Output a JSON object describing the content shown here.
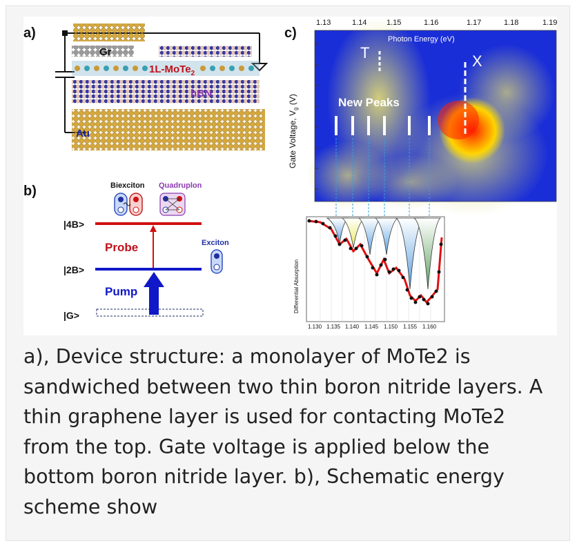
{
  "panel_a": {
    "label": "a)",
    "layer_gr": "Gr",
    "layer_mote2": "1L-MoTe",
    "layer_mote2_sub": "2",
    "layer_hbn": "hBN",
    "contact_au": "Au"
  },
  "panel_b": {
    "label": "b)",
    "biexciton": "Biexciton",
    "quadruplon": "Quadruplon",
    "exciton": "Exciton",
    "level_4b": "|4B>",
    "level_2b": "|2B>",
    "level_g": "|G>",
    "probe": "Probe",
    "pump": "Pump"
  },
  "panel_c": {
    "label": "c)",
    "top_axis_label": "Photon Energy (eV)",
    "top_ticks": [
      "1.13",
      "1.14",
      "1.15",
      "1.16",
      "1.17",
      "1.18",
      "1.19"
    ],
    "y_axis_label": "Gate Voltage, V",
    "y_axis_sub": "g",
    "y_axis_unit": " (V)",
    "label_T": "T",
    "label_X": "X",
    "label_new_peaks": "New Peaks",
    "diff_ylabel": "Differential Absorption",
    "diff_ticks": [
      "1.130",
      "1.135",
      "1.140",
      "1.145",
      "1.150",
      "1.155",
      "1.160"
    ]
  },
  "caption": "a), Device structure: a monolayer of MoTe2 is sandwiched between two thin boron nitride layers. A thin graphene layer is used for contacting MoTe2 from the top. Gate voltage is applied below the bottom boron nitride layer. b), Schematic energy scheme show"
}
